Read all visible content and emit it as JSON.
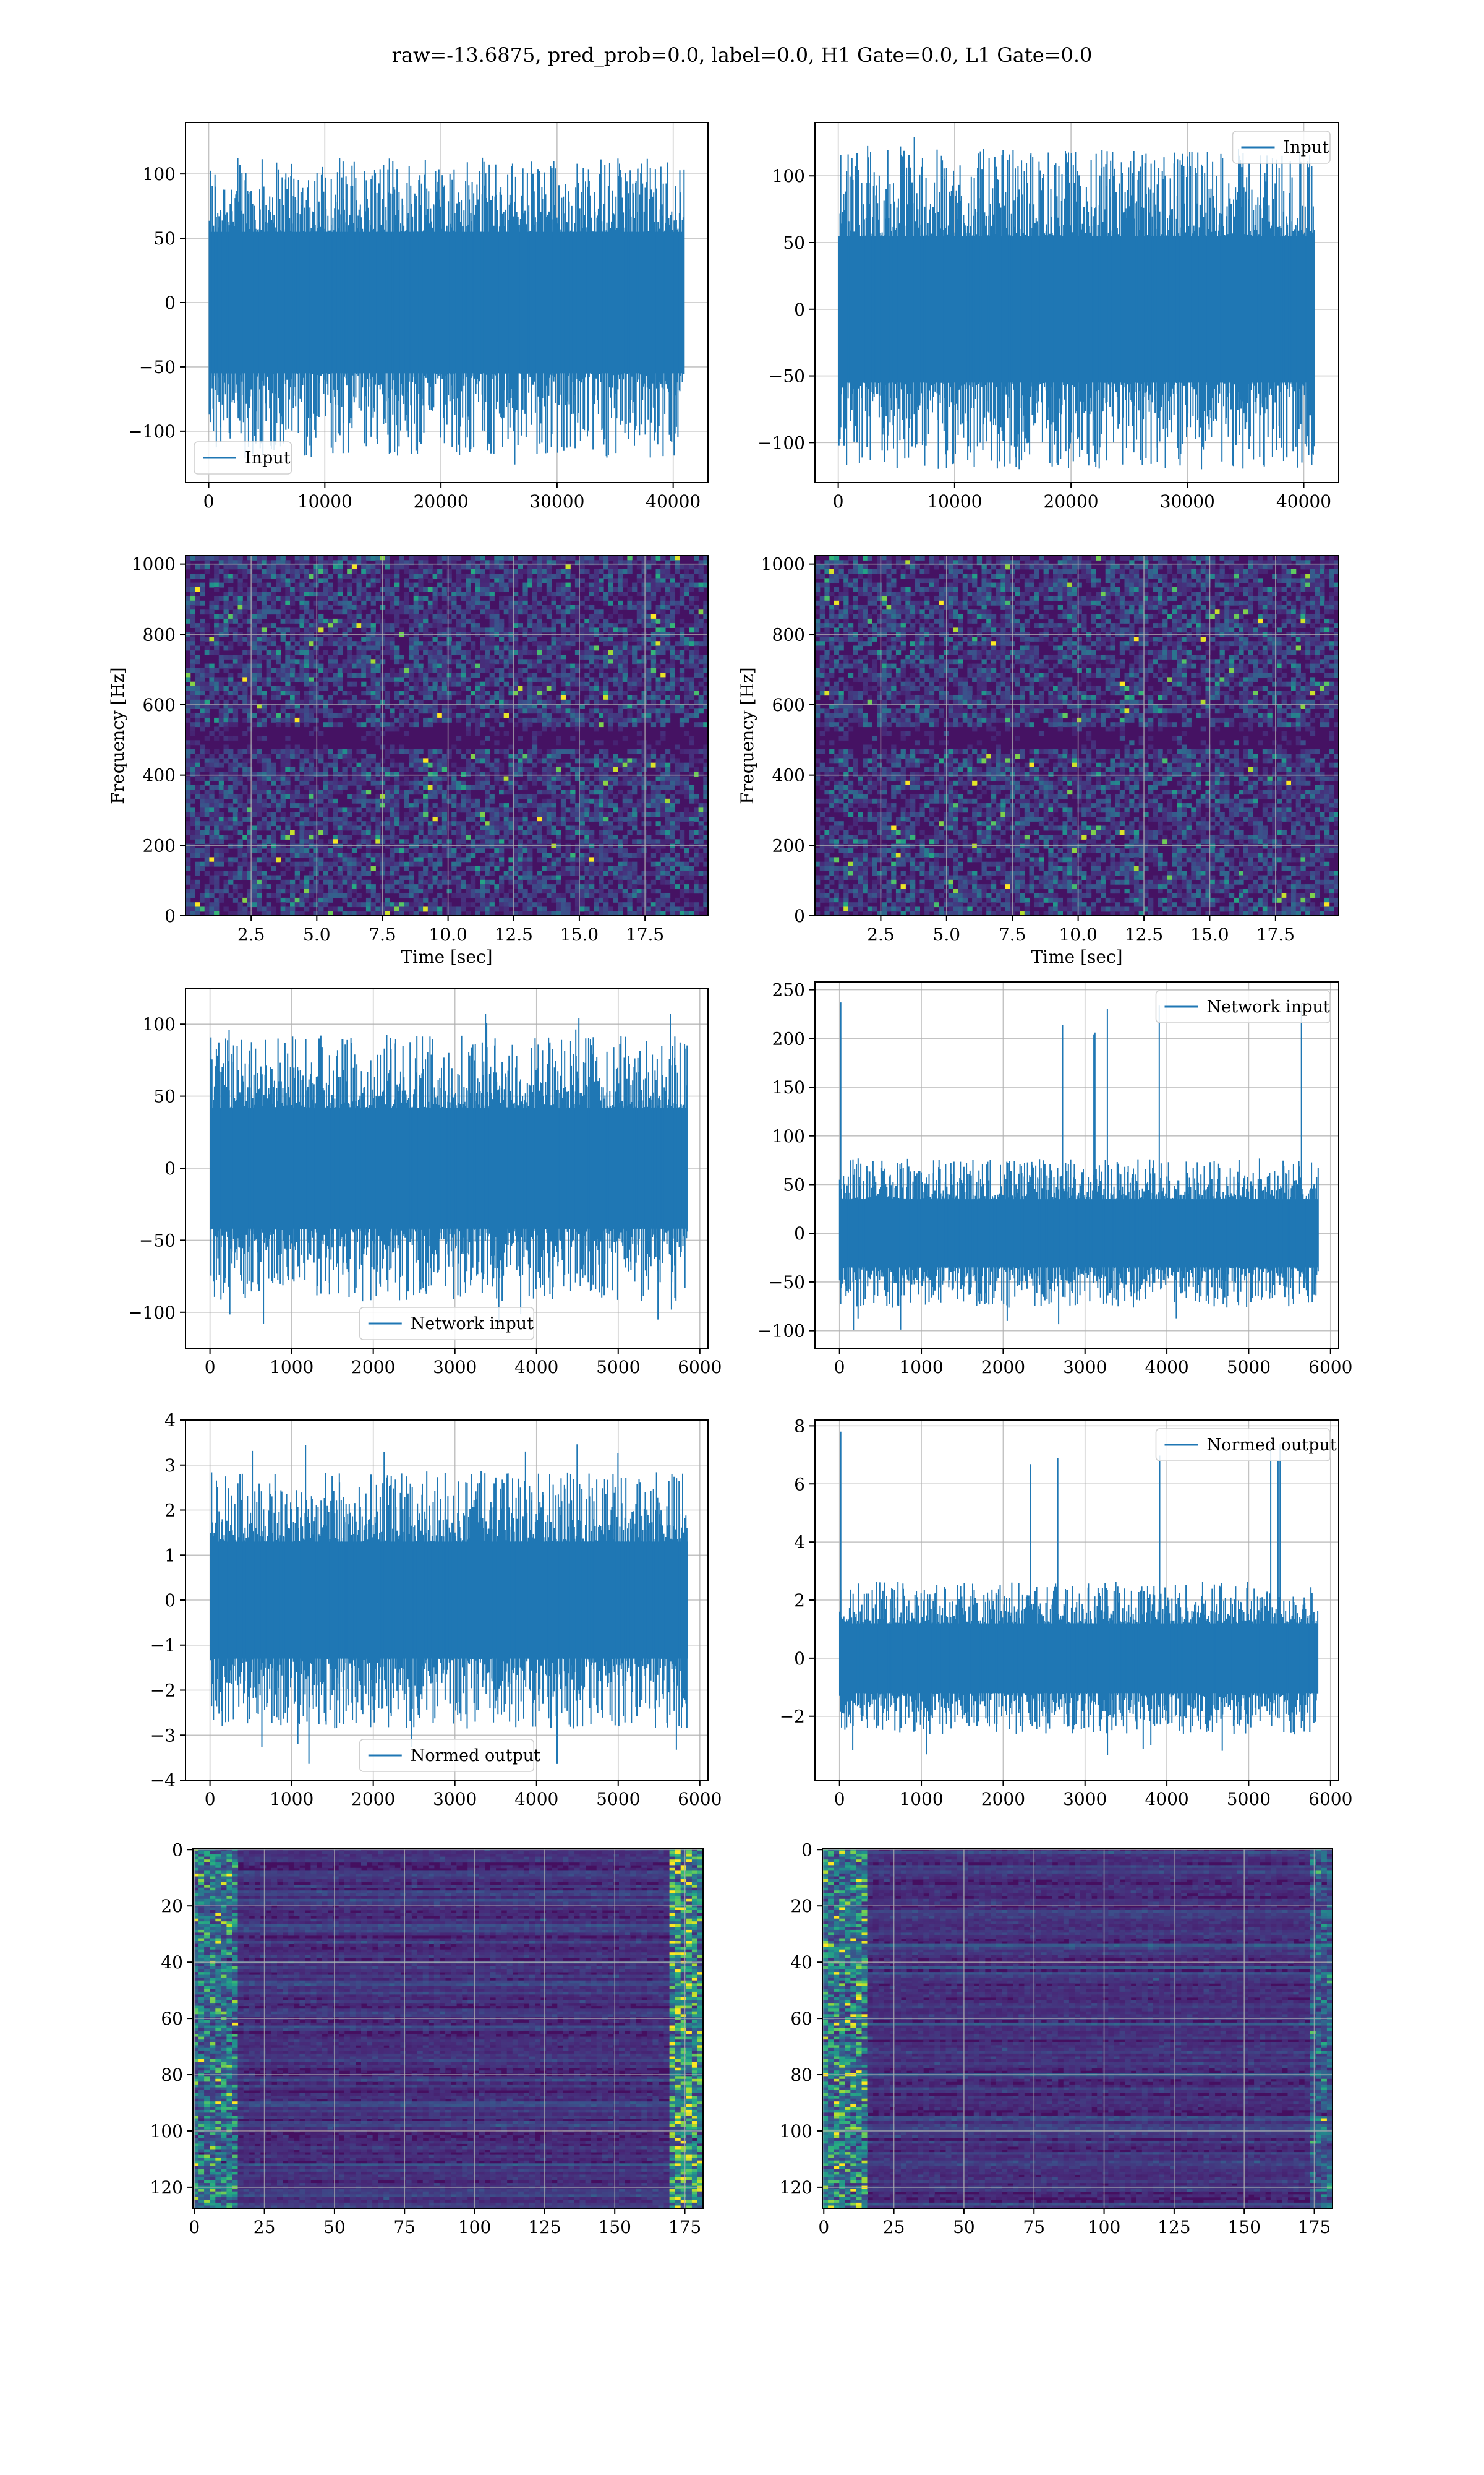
{
  "figure": {
    "title": "raw=-13.6875, pred_prob=0.0, label=0.0, H1 Gate=0.0, L1 Gate=0.0"
  },
  "colors": {
    "line": "#1f77b4",
    "grid": "#b0b0b0",
    "viridis_low": "#440154",
    "viridis_mid": "#21918c",
    "viridis_high": "#fde725"
  },
  "chart_data": [
    {
      "id": "p0",
      "type": "line",
      "xlim": [
        -2000,
        43000
      ],
      "ylim": [
        -140,
        140
      ],
      "xticks": [
        0,
        10000,
        20000,
        30000,
        40000
      ],
      "xticklabels": [
        "0",
        "10000",
        "20000",
        "30000",
        "40000"
      ],
      "yticks": [
        -100,
        -50,
        0,
        50,
        100
      ],
      "yticklabels": [
        "−100",
        "−50",
        "0",
        "50",
        "100"
      ],
      "xlabel": "",
      "ylabel": "",
      "legend": "Input",
      "legend_loc": "lower-left",
      "grid": true,
      "series": [
        {
          "name": "Input",
          "x_range": [
            0,
            40960
          ],
          "band": [
            -55,
            55
          ],
          "extreme": [
            -128,
            113
          ]
        }
      ]
    },
    {
      "id": "p1",
      "type": "line",
      "xlim": [
        -2000,
        43000
      ],
      "ylim": [
        -130,
        140
      ],
      "xticks": [
        0,
        10000,
        20000,
        30000,
        40000
      ],
      "xticklabels": [
        "0",
        "10000",
        "20000",
        "30000",
        "40000"
      ],
      "yticks": [
        -100,
        -50,
        0,
        50,
        100
      ],
      "yticklabels": [
        "−100",
        "−50",
        "0",
        "50",
        "100"
      ],
      "xlabel": "",
      "ylabel": "",
      "legend": "Input",
      "legend_loc": "upper-right",
      "grid": true,
      "series": [
        {
          "name": "Input",
          "x_range": [
            0,
            40960
          ],
          "band": [
            -55,
            55
          ],
          "extreme": [
            -120,
            130
          ]
        }
      ]
    },
    {
      "id": "p2",
      "type": "heatmap",
      "xlim": [
        0,
        19.9
      ],
      "ylim": [
        0,
        1024
      ],
      "xticks": [
        2.5,
        5.0,
        7.5,
        10.0,
        12.5,
        15.0,
        17.5
      ],
      "xticklabels": [
        "2.5",
        "5.0",
        "7.5",
        "10.0",
        "12.5",
        "15.0",
        "17.5"
      ],
      "yticks": [
        0,
        200,
        400,
        600,
        800,
        1000
      ],
      "yticklabels": [
        "0",
        "200",
        "400",
        "600",
        "800",
        "1000"
      ],
      "xlabel": "Time [sec]",
      "ylabel": "Frequency [Hz]",
      "grid": true,
      "colormap": "viridis",
      "dark_band_hz": [
        470,
        540
      ]
    },
    {
      "id": "p3",
      "type": "heatmap",
      "xlim": [
        0,
        19.9
      ],
      "ylim": [
        0,
        1024
      ],
      "xticks": [
        2.5,
        5.0,
        7.5,
        10.0,
        12.5,
        15.0,
        17.5
      ],
      "xticklabels": [
        "2.5",
        "5.0",
        "7.5",
        "10.0",
        "12.5",
        "15.0",
        "17.5"
      ],
      "yticks": [
        0,
        200,
        400,
        600,
        800,
        1000
      ],
      "yticklabels": [
        "0",
        "200",
        "400",
        "600",
        "800",
        "1000"
      ],
      "xlabel": "Time [sec]",
      "ylabel": "Frequency [Hz]",
      "grid": true,
      "colormap": "viridis",
      "dark_band_hz": [
        470,
        540
      ]
    },
    {
      "id": "p4",
      "type": "line",
      "xlim": [
        -300,
        6100
      ],
      "ylim": [
        -125,
        125
      ],
      "xticks": [
        0,
        1000,
        2000,
        3000,
        4000,
        5000,
        6000
      ],
      "xticklabels": [
        "0",
        "1000",
        "2000",
        "3000",
        "4000",
        "5000",
        "6000"
      ],
      "yticks": [
        -100,
        -50,
        0,
        50,
        100
      ],
      "yticklabels": [
        "−100",
        "−50",
        "0",
        "50",
        "100"
      ],
      "xlabel": "",
      "ylabel": "",
      "legend": "Network input",
      "legend_loc": "lower-center",
      "grid": true,
      "series": [
        {
          "name": "Network input",
          "x_range": [
            0,
            5850
          ],
          "band": [
            -42,
            42
          ],
          "extreme": [
            -112,
            110
          ]
        }
      ]
    },
    {
      "id": "p5",
      "type": "line",
      "xlim": [
        -300,
        6100
      ],
      "ylim": [
        -118,
        258
      ],
      "xticks": [
        0,
        1000,
        2000,
        3000,
        4000,
        5000,
        6000
      ],
      "xticklabels": [
        "0",
        "1000",
        "2000",
        "3000",
        "4000",
        "5000",
        "6000"
      ],
      "yticks": [
        -100,
        -50,
        0,
        50,
        100,
        150,
        200,
        250
      ],
      "yticklabels": [
        "−100",
        "−50",
        "0",
        "50",
        "100",
        "150",
        "200",
        "250"
      ],
      "xlabel": "",
      "ylabel": "",
      "legend": "Network input",
      "legend_loc": "upper-right",
      "grid": true,
      "series": [
        {
          "name": "Network input",
          "x_range": [
            0,
            5850
          ],
          "band": [
            -35,
            35
          ],
          "extreme": [
            -100,
            237
          ]
        }
      ]
    },
    {
      "id": "p6",
      "type": "line",
      "xlim": [
        -300,
        6100
      ],
      "ylim": [
        -4,
        4
      ],
      "xticks": [
        0,
        1000,
        2000,
        3000,
        4000,
        5000,
        6000
      ],
      "xticklabels": [
        "0",
        "1000",
        "2000",
        "3000",
        "4000",
        "5000",
        "6000"
      ],
      "yticks": [
        -4,
        -3,
        -2,
        -1,
        0,
        1,
        2,
        3,
        4
      ],
      "yticklabels": [
        "−4",
        "−3",
        "−2",
        "−1",
        "0",
        "1",
        "2",
        "3",
        "4"
      ],
      "xlabel": "",
      "ylabel": "",
      "legend": "Normed output",
      "legend_loc": "lower-center",
      "grid": true,
      "series": [
        {
          "name": "Normed output",
          "x_range": [
            0,
            5850
          ],
          "band": [
            -1.3,
            1.3
          ],
          "extreme": [
            -3.7,
            3.6
          ]
        }
      ]
    },
    {
      "id": "p7",
      "type": "line",
      "xlim": [
        -300,
        6100
      ],
      "ylim": [
        -4.2,
        8.2
      ],
      "xticks": [
        0,
        1000,
        2000,
        3000,
        4000,
        5000,
        6000
      ],
      "xticklabels": [
        "0",
        "1000",
        "2000",
        "3000",
        "4000",
        "5000",
        "6000"
      ],
      "yticks": [
        -2,
        0,
        2,
        4,
        6,
        8
      ],
      "yticklabels": [
        "−2",
        "0",
        "2",
        "4",
        "6",
        "8"
      ],
      "xlabel": "",
      "ylabel": "",
      "legend": "Normed output",
      "legend_loc": "upper-right",
      "grid": true,
      "series": [
        {
          "name": "Normed output",
          "x_range": [
            0,
            5850
          ],
          "band": [
            -1.2,
            1.2
          ],
          "extreme": [
            -3.4,
            7.8
          ]
        }
      ]
    },
    {
      "id": "p8",
      "type": "heatmap",
      "xlim": [
        -0.5,
        181.5
      ],
      "ylim": [
        127.5,
        -0.5
      ],
      "xticks": [
        0,
        25,
        50,
        75,
        100,
        125,
        150,
        175
      ],
      "xticklabels": [
        "0",
        "25",
        "50",
        "75",
        "100",
        "125",
        "150",
        "175"
      ],
      "yticks": [
        0,
        20,
        40,
        60,
        80,
        100,
        120
      ],
      "yticklabels": [
        "0",
        "20",
        "40",
        "60",
        "80",
        "100",
        "120"
      ],
      "xlabel": "",
      "ylabel": "",
      "grid": true,
      "colormap": "viridis",
      "rows": 128,
      "cols": 182
    },
    {
      "id": "p9",
      "type": "heatmap",
      "xlim": [
        -0.5,
        181.5
      ],
      "ylim": [
        127.5,
        -0.5
      ],
      "xticks": [
        0,
        25,
        50,
        75,
        100,
        125,
        150,
        175
      ],
      "xticklabels": [
        "0",
        "25",
        "50",
        "75",
        "100",
        "125",
        "150",
        "175"
      ],
      "yticks": [
        0,
        20,
        40,
        60,
        80,
        100,
        120
      ],
      "yticklabels": [
        "0",
        "20",
        "40",
        "60",
        "80",
        "100",
        "120"
      ],
      "xlabel": "",
      "ylabel": "",
      "grid": true,
      "colormap": "viridis",
      "rows": 128,
      "cols": 182
    }
  ]
}
